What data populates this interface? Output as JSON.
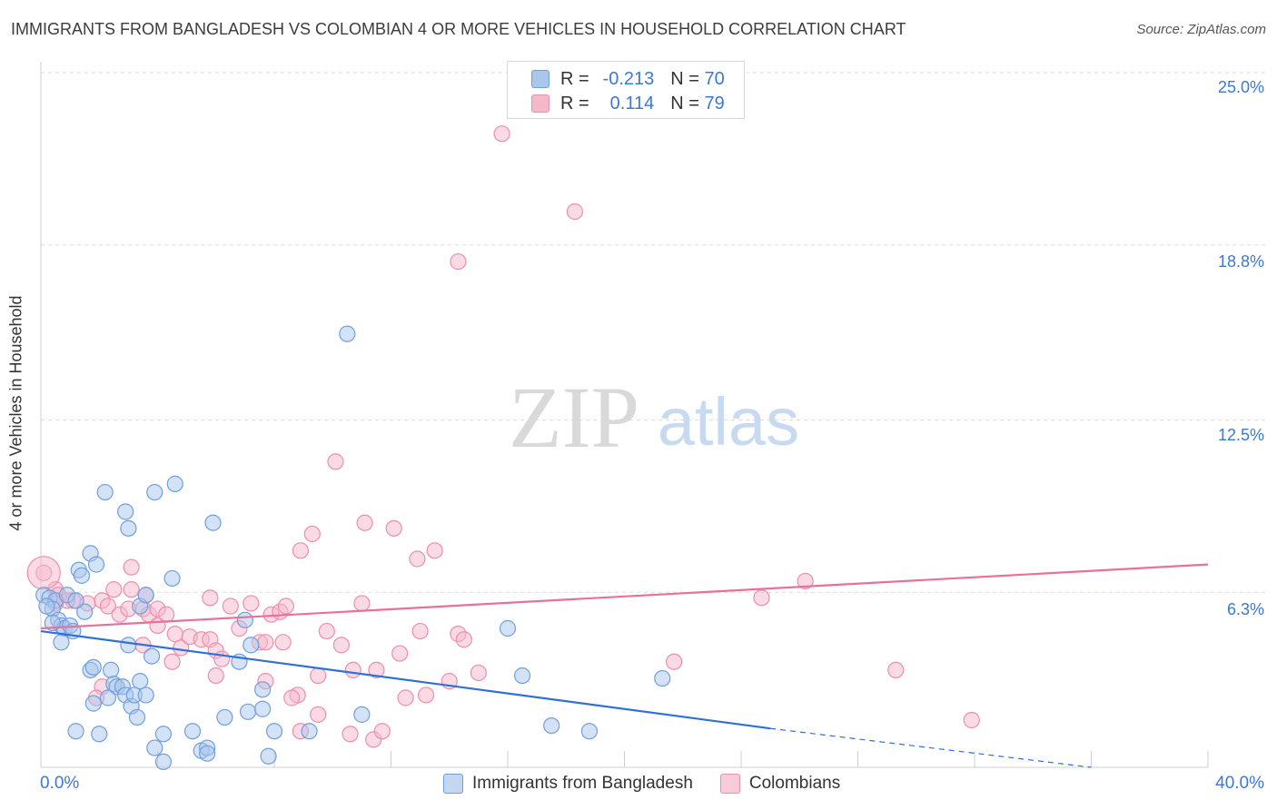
{
  "title": "IMMIGRANTS FROM BANGLADESH VS COLOMBIAN 4 OR MORE VEHICLES IN HOUSEHOLD CORRELATION CHART",
  "source": "Source: ZipAtlas.com",
  "watermark": {
    "zip": "ZIP",
    "atlas": "atlas"
  },
  "legend": {
    "r_label": "R =",
    "n_label": "N =",
    "rows": [
      {
        "r": "-0.213",
        "n": "70"
      },
      {
        "r": "0.114",
        "n": "79"
      }
    ]
  },
  "colors": {
    "blue_fill": "#a9c6ec",
    "blue_stroke": "#6fa0dc",
    "blue_line": "#2f6fd6",
    "pink_fill": "#f5b8cb",
    "pink_stroke": "#ec8fab",
    "pink_line": "#e8709a",
    "accent_text": "#3c78d8"
  },
  "chart_data": {
    "type": "scatter",
    "xlabel": "",
    "ylabel": "4 or more Vehicles in Household",
    "xlim": [
      0,
      40
    ],
    "ylim": [
      0,
      25
    ],
    "x_tick_labels": [
      "0.0%",
      "40.0%"
    ],
    "y_ticks": [
      6.3,
      12.5,
      18.8,
      25.0
    ],
    "y_tick_labels": [
      "6.3%",
      "12.5%",
      "18.8%",
      "25.0%"
    ],
    "grid": "horizontal dashed",
    "legend_position": "bottom",
    "series": [
      {
        "name": "Immigrants from Bangladesh",
        "color": "blue",
        "trend": {
          "x0": 0,
          "y0": 4.9,
          "x1": 25,
          "y1": 1.4,
          "dash_to_x": 36,
          "dash_to_y": 0
        },
        "points": [
          [
            0.1,
            6.2
          ],
          [
            0.3,
            6.1
          ],
          [
            0.5,
            6.0
          ],
          [
            0.4,
            5.7
          ],
          [
            0.6,
            5.3
          ],
          [
            0.7,
            5.1
          ],
          [
            0.8,
            5.0
          ],
          [
            1.0,
            5.1
          ],
          [
            1.1,
            4.9
          ],
          [
            0.7,
            4.5
          ],
          [
            1.3,
            7.1
          ],
          [
            1.4,
            6.9
          ],
          [
            1.7,
            7.7
          ],
          [
            1.9,
            7.3
          ],
          [
            2.2,
            9.9
          ],
          [
            2.9,
            9.2
          ],
          [
            3.0,
            8.6
          ],
          [
            3.9,
            9.9
          ],
          [
            4.6,
            10.2
          ],
          [
            5.9,
            8.8
          ],
          [
            4.5,
            6.8
          ],
          [
            3.4,
            5.8
          ],
          [
            3.6,
            6.2
          ],
          [
            3.8,
            4.0
          ],
          [
            3.0,
            4.4
          ],
          [
            2.4,
            3.5
          ],
          [
            1.7,
            3.5
          ],
          [
            1.8,
            3.6
          ],
          [
            2.5,
            3.0
          ],
          [
            2.6,
            2.9
          ],
          [
            2.8,
            2.9
          ],
          [
            2.9,
            2.6
          ],
          [
            3.4,
            3.1
          ],
          [
            3.1,
            2.2
          ],
          [
            3.3,
            1.8
          ],
          [
            3.2,
            2.6
          ],
          [
            3.6,
            2.6
          ],
          [
            2.3,
            2.5
          ],
          [
            1.8,
            2.3
          ],
          [
            1.2,
            1.3
          ],
          [
            2.0,
            1.2
          ],
          [
            3.9,
            0.7
          ],
          [
            4.2,
            1.2
          ],
          [
            5.2,
            1.3
          ],
          [
            5.5,
            0.6
          ],
          [
            5.7,
            0.7
          ],
          [
            5.7,
            0.5
          ],
          [
            6.3,
            1.8
          ],
          [
            7.1,
            2.0
          ],
          [
            7.6,
            2.1
          ],
          [
            7.6,
            2.8
          ],
          [
            7.2,
            4.4
          ],
          [
            7.0,
            5.3
          ],
          [
            6.8,
            3.8
          ],
          [
            8.0,
            1.3
          ],
          [
            9.2,
            1.3
          ],
          [
            11.0,
            1.9
          ],
          [
            7.8,
            0.4
          ],
          [
            4.2,
            0.2
          ],
          [
            10.5,
            15.6
          ],
          [
            16.0,
            5.0
          ],
          [
            16.5,
            3.3
          ],
          [
            17.5,
            1.5
          ],
          [
            18.8,
            1.3
          ],
          [
            21.3,
            3.2
          ],
          [
            0.9,
            6.2
          ],
          [
            1.5,
            5.6
          ],
          [
            0.2,
            5.8
          ],
          [
            0.4,
            5.2
          ],
          [
            1.2,
            6.0
          ]
        ]
      },
      {
        "name": "Colombians",
        "color": "pink",
        "trend": {
          "x0": 0,
          "y0": 5.0,
          "x1": 40,
          "y1": 7.3
        },
        "points": [
          [
            0.1,
            7.0
          ],
          [
            0.5,
            6.4
          ],
          [
            0.6,
            6.2
          ],
          [
            1.1,
            6.0
          ],
          [
            1.6,
            5.9
          ],
          [
            2.1,
            6.0
          ],
          [
            2.3,
            5.8
          ],
          [
            2.7,
            5.5
          ],
          [
            3.0,
            5.7
          ],
          [
            2.5,
            6.4
          ],
          [
            3.1,
            7.2
          ],
          [
            3.1,
            6.4
          ],
          [
            3.6,
            6.2
          ],
          [
            3.5,
            5.7
          ],
          [
            3.7,
            5.5
          ],
          [
            4.0,
            5.7
          ],
          [
            4.3,
            5.5
          ],
          [
            4.0,
            5.1
          ],
          [
            4.6,
            4.8
          ],
          [
            4.8,
            4.3
          ],
          [
            5.1,
            4.7
          ],
          [
            5.5,
            4.6
          ],
          [
            5.8,
            4.6
          ],
          [
            6.0,
            4.2
          ],
          [
            6.2,
            3.9
          ],
          [
            5.8,
            6.1
          ],
          [
            6.5,
            5.8
          ],
          [
            6.8,
            5.0
          ],
          [
            7.2,
            5.9
          ],
          [
            7.5,
            4.5
          ],
          [
            7.7,
            4.5
          ],
          [
            7.9,
            5.5
          ],
          [
            8.2,
            5.6
          ],
          [
            8.3,
            4.5
          ],
          [
            8.4,
            5.8
          ],
          [
            8.9,
            7.8
          ],
          [
            9.3,
            8.4
          ],
          [
            9.8,
            4.9
          ],
          [
            10.3,
            4.4
          ],
          [
            10.7,
            3.5
          ],
          [
            11.0,
            5.9
          ],
          [
            11.5,
            3.5
          ],
          [
            12.3,
            4.1
          ],
          [
            12.9,
            7.5
          ],
          [
            13.5,
            7.8
          ],
          [
            12.1,
            8.6
          ],
          [
            11.1,
            8.8
          ],
          [
            10.1,
            11.0
          ],
          [
            13.0,
            4.9
          ],
          [
            14.3,
            4.8
          ],
          [
            14.5,
            4.6
          ],
          [
            14.0,
            3.1
          ],
          [
            13.2,
            2.6
          ],
          [
            12.5,
            2.5
          ],
          [
            11.4,
            1.0
          ],
          [
            10.6,
            1.2
          ],
          [
            9.5,
            1.9
          ],
          [
            8.8,
            2.6
          ],
          [
            8.6,
            2.5
          ],
          [
            7.7,
            3.1
          ],
          [
            9.5,
            3.3
          ],
          [
            3.5,
            4.4
          ],
          [
            4.5,
            3.8
          ],
          [
            2.1,
            2.9
          ],
          [
            1.9,
            2.5
          ],
          [
            0.9,
            6.0
          ],
          [
            0.5,
            5.9
          ],
          [
            6.0,
            3.3
          ],
          [
            15.0,
            3.4
          ],
          [
            18.3,
            20.0
          ],
          [
            15.8,
            22.8
          ],
          [
            14.3,
            18.2
          ],
          [
            21.7,
            3.8
          ],
          [
            24.7,
            6.1
          ],
          [
            26.2,
            6.7
          ],
          [
            29.3,
            3.5
          ],
          [
            31.9,
            1.7
          ],
          [
            8.9,
            1.3
          ],
          [
            11.7,
            1.3
          ]
        ]
      }
    ]
  }
}
